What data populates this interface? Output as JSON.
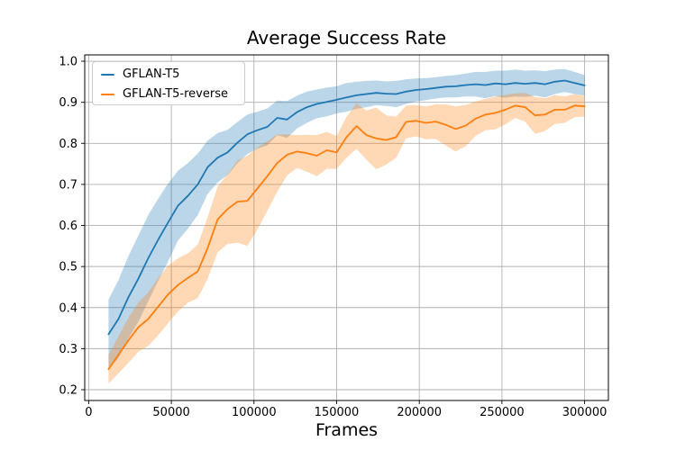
{
  "chart_data": {
    "type": "line",
    "title": "Average Success Rate",
    "xlabel": "Frames",
    "ylabel": "",
    "grid": true,
    "legend_position": "upper left",
    "xlim": [
      -2400,
      314400
    ],
    "ylim": [
      0.1737,
      1.0154
    ],
    "x_ticks": {
      "values": [
        0,
        50000,
        100000,
        150000,
        200000,
        250000,
        300000
      ],
      "labels": [
        "0",
        "50000",
        "100000",
        "150000",
        "200000",
        "250000",
        "300000"
      ]
    },
    "y_ticks": {
      "values": [
        0.2,
        0.3,
        0.4,
        0.5,
        0.6,
        0.7,
        0.8,
        0.9,
        1.0
      ],
      "labels": [
        "0.2",
        "0.3",
        "0.4",
        "0.5",
        "0.6",
        "0.7",
        "0.8",
        "0.9",
        "1.0"
      ]
    },
    "x": [
      12000,
      18000,
      24000,
      30000,
      36000,
      42000,
      48000,
      54000,
      60000,
      66000,
      72000,
      78000,
      84000,
      90000,
      96000,
      102000,
      108000,
      114000,
      120000,
      126000,
      132000,
      138000,
      144000,
      150000,
      156000,
      162000,
      168000,
      174000,
      180000,
      186000,
      192000,
      198000,
      204000,
      210000,
      216000,
      222000,
      228000,
      234000,
      240000,
      246000,
      252000,
      258000,
      264000,
      270000,
      276000,
      282000,
      288000,
      294000,
      300000
    ],
    "series": [
      {
        "name": "GFLAN-T5",
        "color": "#1f77b4",
        "values": [
          0.335,
          0.372,
          0.425,
          0.47,
          0.52,
          0.565,
          0.607,
          0.648,
          0.672,
          0.7,
          0.742,
          0.765,
          0.778,
          0.802,
          0.822,
          0.832,
          0.84,
          0.862,
          0.858,
          0.876,
          0.888,
          0.896,
          0.901,
          0.906,
          0.912,
          0.917,
          0.92,
          0.923,
          0.921,
          0.92,
          0.926,
          0.93,
          0.932,
          0.935,
          0.938,
          0.939,
          0.942,
          0.944,
          0.942,
          0.946,
          0.944,
          0.947,
          0.945,
          0.947,
          0.944,
          0.95,
          0.953,
          0.947,
          0.941
        ],
        "band_halfwidth": [
          0.085,
          0.095,
          0.1,
          0.105,
          0.105,
          0.1,
          0.095,
          0.085,
          0.08,
          0.075,
          0.065,
          0.06,
          0.055,
          0.05,
          0.048,
          0.045,
          0.045,
          0.042,
          0.045,
          0.04,
          0.038,
          0.035,
          0.035,
          0.033,
          0.035,
          0.033,
          0.032,
          0.03,
          0.03,
          0.032,
          0.03,
          0.028,
          0.027,
          0.026,
          0.026,
          0.027,
          0.028,
          0.03,
          0.032,
          0.031,
          0.033,
          0.033,
          0.032,
          0.031,
          0.032,
          0.03,
          0.028,
          0.027,
          0.025
        ]
      },
      {
        "name": "GFLAN-T5-reverse",
        "color": "#ff7f0e",
        "values": [
          0.25,
          0.285,
          0.32,
          0.352,
          0.372,
          0.402,
          0.432,
          0.455,
          0.472,
          0.488,
          0.545,
          0.615,
          0.64,
          0.658,
          0.66,
          0.69,
          0.72,
          0.752,
          0.772,
          0.78,
          0.776,
          0.77,
          0.783,
          0.778,
          0.815,
          0.842,
          0.82,
          0.812,
          0.808,
          0.815,
          0.852,
          0.855,
          0.85,
          0.853,
          0.845,
          0.835,
          0.843,
          0.86,
          0.87,
          0.874,
          0.882,
          0.892,
          0.888,
          0.868,
          0.87,
          0.882,
          0.882,
          0.892,
          0.89
        ],
        "band_halfwidth": [
          0.035,
          0.045,
          0.055,
          0.06,
          0.065,
          0.07,
          0.07,
          0.065,
          0.06,
          0.065,
          0.075,
          0.08,
          0.085,
          0.1,
          0.11,
          0.1,
          0.085,
          0.07,
          0.05,
          0.04,
          0.045,
          0.05,
          0.045,
          0.04,
          0.05,
          0.055,
          0.06,
          0.075,
          0.06,
          0.05,
          0.04,
          0.038,
          0.04,
          0.042,
          0.05,
          0.055,
          0.05,
          0.042,
          0.038,
          0.04,
          0.036,
          0.03,
          0.035,
          0.045,
          0.04,
          0.035,
          0.032,
          0.028,
          0.025
        ]
      }
    ],
    "colors": {
      "grid": "#b0b0b0",
      "spine": "#000000",
      "text": "#000000",
      "background": "#ffffff"
    }
  }
}
